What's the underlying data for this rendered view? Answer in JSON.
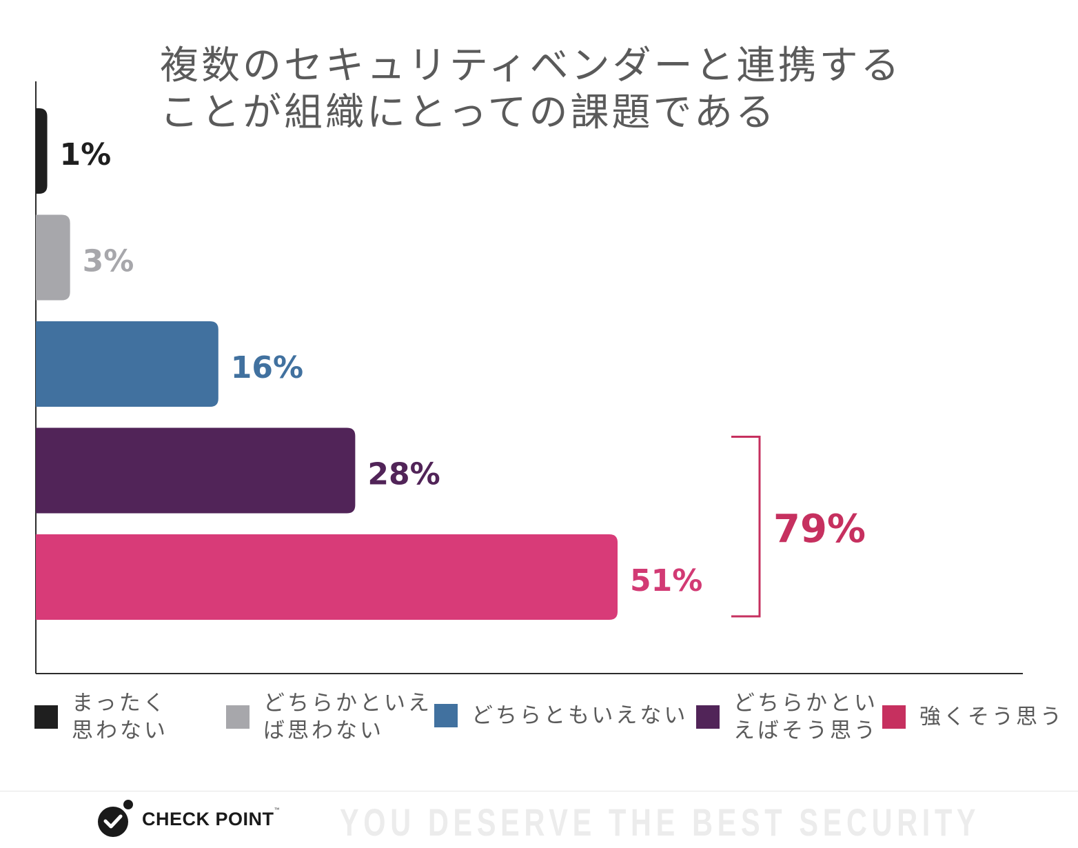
{
  "title_lines": [
    "複数のセキュリティベンダーと連携する",
    "ことが組織にとっての課題である"
  ],
  "chart_data": {
    "type": "bar",
    "orientation": "horizontal",
    "categories": [
      "まったく思わない",
      "どちらかといえば思わない",
      "どちらともいえない",
      "どちらかといえばそう思う",
      "強くそう思う"
    ],
    "values": [
      1,
      3,
      16,
      28,
      51
    ],
    "value_labels": [
      "1%",
      "3%",
      "16%",
      "28%",
      "51%"
    ],
    "colors": [
      "#1f1f1f",
      "#a7a7ab",
      "#41719f",
      "#512458",
      "#d83b78"
    ],
    "label_colors": [
      "#1f1f1f",
      "#a7a7ab",
      "#41719f",
      "#512458",
      "#d23a74"
    ],
    "xlim": [
      0,
      52
    ],
    "annotation": {
      "label": "79%",
      "color": "#c6305f",
      "brackets_categories": [
        "どちらかといえばそう思う",
        "強くそう思う"
      ]
    },
    "legend_position": "bottom"
  },
  "legend": [
    {
      "label": "まったく\n思わない",
      "color": "#1f1f1f"
    },
    {
      "label": "どちらかといえ\nば思わない",
      "color": "#a7a7ab"
    },
    {
      "label": "どちらともいえない",
      "color": "#41719f"
    },
    {
      "label": "どちらかとい\nえばそう思う",
      "color": "#512458"
    },
    {
      "label": "強くそう思う",
      "color": "#c6305f"
    }
  ],
  "footer": {
    "logo_text": "CHECK POINT",
    "tagline": "YOU DESERVE THE BEST SECURITY"
  }
}
